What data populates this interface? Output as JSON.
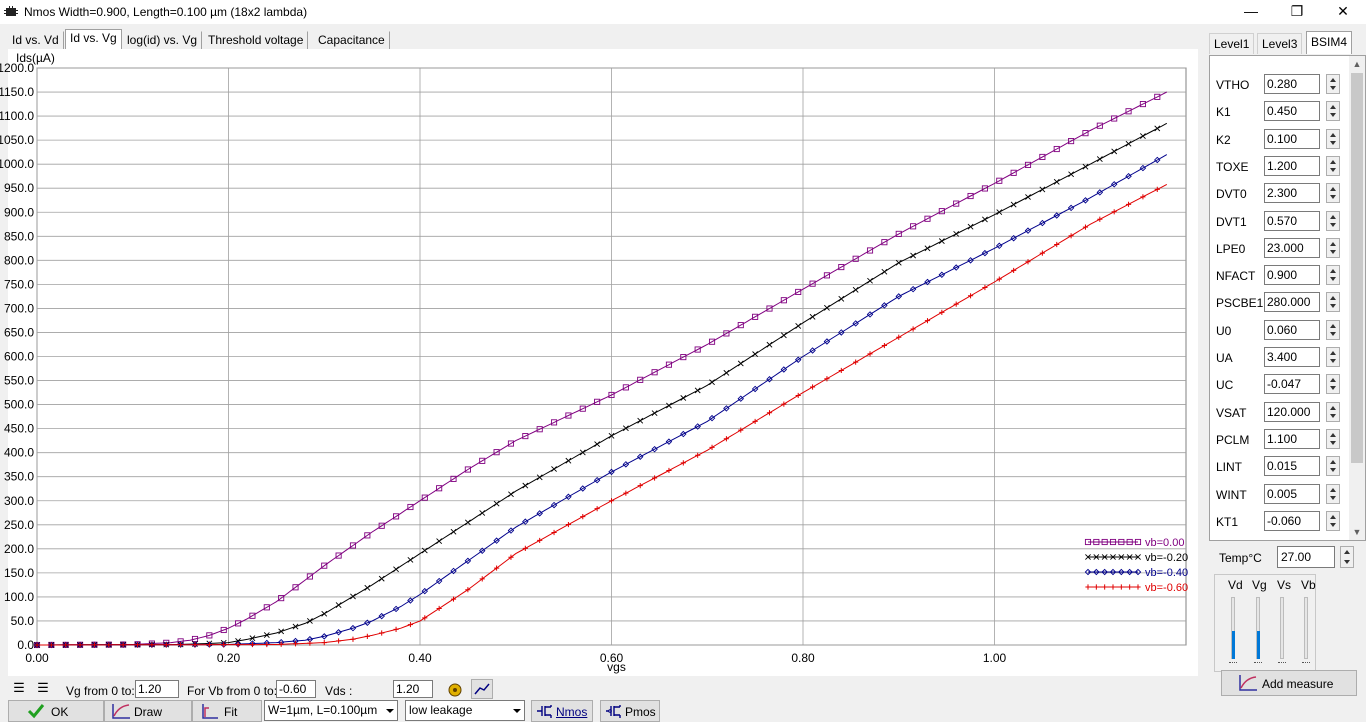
{
  "window": {
    "title": "Nmos Width=0.900, Length=0.100 µm (18x2 lambda)",
    "minimize": "—",
    "maximize": "❐",
    "close": "✕"
  },
  "tabs": [
    "Id vs. Vd",
    "Id vs. Vg",
    "log(id) vs. Vg",
    "Threshold voltage",
    "Capacitance"
  ],
  "active_tab": 1,
  "chart_data": {
    "type": "line",
    "ylabel": "Ids(µA)",
    "xlabel": "vgs",
    "ylim": [
      0,
      1200
    ],
    "xlim": [
      0,
      1.2
    ],
    "yticks": [
      "0.0",
      "50.0",
      "100.0",
      "150.0",
      "200.0",
      "250.0",
      "300.0",
      "350.0",
      "400.0",
      "450.0",
      "500.0",
      "550.0",
      "600.0",
      "650.0",
      "700.0",
      "750.0",
      "800.0",
      "850.0",
      "900.0",
      "950.0",
      "1000.0",
      "1050.0",
      "1100.0",
      "1150.0",
      "1200.0"
    ],
    "xticks": [
      "0.00",
      "0.20",
      "0.40",
      "0.60",
      "0.80",
      "1.00"
    ],
    "grid": true,
    "legend_position": "bottom-right",
    "series": [
      {
        "name": "vb=0.00",
        "color": "#800080",
        "marker": "square",
        "x": [
          0.0,
          0.1,
          0.14,
          0.16,
          0.18,
          0.2,
          0.22,
          0.25,
          0.3,
          0.35,
          0.4,
          0.45,
          0.5,
          0.6,
          0.7,
          0.8,
          0.9,
          1.0,
          1.1,
          1.18
        ],
        "y": [
          0,
          1,
          5,
          10,
          20,
          35,
          55,
          90,
          165,
          235,
          300,
          365,
          425,
          520,
          625,
          740,
          855,
          960,
          1070,
          1150
        ]
      },
      {
        "name": "vb=-0.20",
        "color": "#000000",
        "marker": "cross",
        "x": [
          0.0,
          0.15,
          0.2,
          0.22,
          0.25,
          0.28,
          0.3,
          0.35,
          0.4,
          0.45,
          0.5,
          0.6,
          0.7,
          0.8,
          0.9,
          1.0,
          1.1,
          1.18
        ],
        "y": [
          0,
          1,
          5,
          12,
          25,
          45,
          65,
          125,
          190,
          255,
          320,
          435,
          540,
          670,
          795,
          895,
          1000,
          1085
        ]
      },
      {
        "name": "vb=-0.40",
        "color": "#00008b",
        "marker": "diamond",
        "x": [
          0.0,
          0.2,
          0.25,
          0.28,
          0.3,
          0.33,
          0.35,
          0.38,
          0.4,
          0.45,
          0.5,
          0.6,
          0.7,
          0.8,
          0.9,
          1.0,
          1.1,
          1.18
        ],
        "y": [
          0,
          1,
          5,
          10,
          18,
          35,
          50,
          80,
          105,
          175,
          245,
          360,
          465,
          600,
          725,
          825,
          930,
          1020
        ]
      },
      {
        "name": "vb=-0.60",
        "color": "#e00000",
        "marker": "plus",
        "x": [
          0.0,
          0.25,
          0.3,
          0.33,
          0.35,
          0.38,
          0.4,
          0.45,
          0.5,
          0.6,
          0.7,
          0.8,
          0.9,
          1.0,
          1.1,
          1.18
        ],
        "y": [
          0,
          1,
          5,
          12,
          20,
          35,
          50,
          115,
          190,
          300,
          405,
          525,
          640,
          755,
          875,
          958
        ]
      }
    ]
  },
  "param_tabs": [
    "Level1",
    "Level3",
    "BSIM4"
  ],
  "active_param_tab": 2,
  "params": [
    {
      "label": "VTHO",
      "value": "0.280"
    },
    {
      "label": "K1",
      "value": "0.450"
    },
    {
      "label": "K2",
      "value": "0.100"
    },
    {
      "label": "TOXE",
      "value": "1.200"
    },
    {
      "label": "DVT0",
      "value": "2.300"
    },
    {
      "label": "DVT1",
      "value": "0.570"
    },
    {
      "label": "LPE0",
      "value": "23.000"
    },
    {
      "label": "NFACT",
      "value": "0.900"
    },
    {
      "label": "PSCBE1",
      "value": "280.000"
    },
    {
      "label": "U0",
      "value": "0.060"
    },
    {
      "label": "UA",
      "value": "3.400"
    },
    {
      "label": "UC",
      "value": "-0.047"
    },
    {
      "label": "VSAT",
      "value": "120.000"
    },
    {
      "label": "PCLM",
      "value": "1.100"
    },
    {
      "label": "LINT",
      "value": "0.015"
    },
    {
      "label": "WINT",
      "value": "0.005"
    },
    {
      "label": "KT1",
      "value": "-0.060"
    }
  ],
  "temp": {
    "label": "Temp°C",
    "value": "27.00"
  },
  "sliders": {
    "labels": [
      "Vd",
      "Vg",
      "Vs",
      "Vb"
    ],
    "levels": [
      0.45,
      0.45,
      0,
      0
    ]
  },
  "add_measure": "Add measure",
  "bottom": {
    "vg_label": "Vg from 0 to:",
    "vg_value": "1.20",
    "vb_label": "For Vb from 0 to:",
    "vb_value": "-0.60",
    "vds_label": "Vds :",
    "vds_value": "1.20",
    "ok": "OK",
    "draw": "Draw",
    "fit": "Fit",
    "size_combo": "W=1µm, L=0.100µm",
    "leak_combo": "low leakage",
    "nmos": "Nmos",
    "pmos": "Pmos"
  }
}
